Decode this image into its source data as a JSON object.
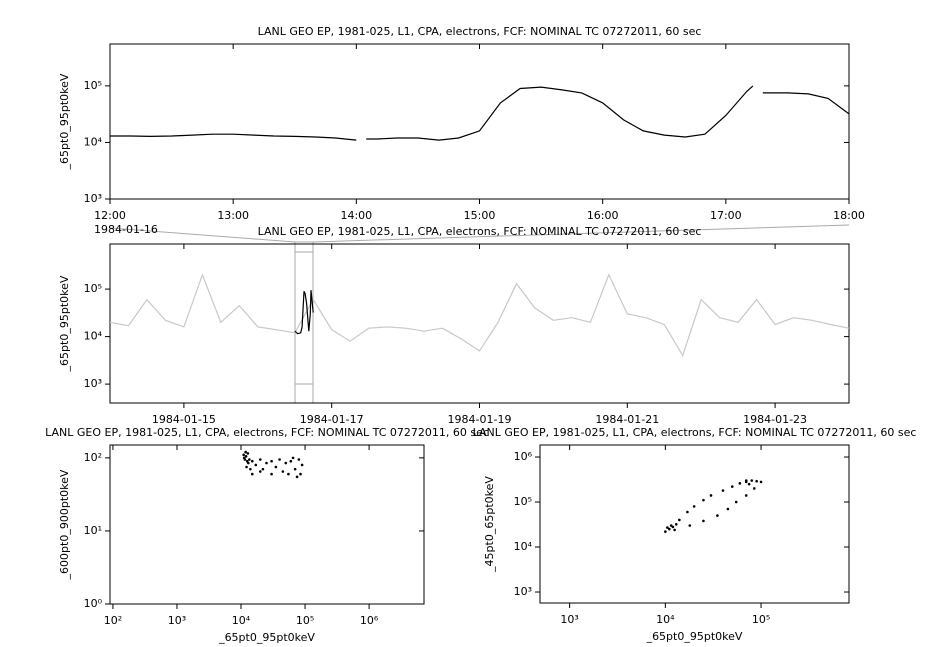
{
  "chart_data": [
    {
      "type": "line",
      "title": "LANL GEO EP, 1981-025, L1, CPA, electrons, FCF: NOMINAL TC 07272011, 60 sec",
      "y_label": "_65pt0_95pt0keV",
      "x_context": "1984-01-16",
      "ylog": true,
      "xlog": false,
      "xlim": [
        12,
        18
      ],
      "xticks": [
        {
          "value": 12,
          "label": "12:00"
        },
        {
          "value": 13,
          "label": "13:00"
        },
        {
          "value": 14,
          "label": "14:00"
        },
        {
          "value": 15,
          "label": "15:00"
        },
        {
          "value": 16,
          "label": "16:00"
        },
        {
          "value": 17,
          "label": "17:00"
        },
        {
          "value": 18,
          "label": "18:00"
        }
      ],
      "ylim": [
        1000,
        550000
      ],
      "yticks": [
        {
          "value": 1000,
          "label": "10³"
        },
        {
          "value": 10000,
          "label": "10⁴"
        },
        {
          "value": 100000,
          "label": "10⁵"
        }
      ],
      "series": [
        {
          "color": "#000000",
          "x": [
            12,
            12.17,
            12.33,
            12.5,
            12.67,
            12.83,
            13,
            13.17,
            13.33,
            13.5,
            13.67,
            13.83,
            14,
            14.03,
            14.08,
            14.17,
            14.33,
            14.5,
            14.67,
            14.83,
            15,
            15.17,
            15.33,
            15.5,
            15.67,
            15.83,
            16,
            16.17,
            16.33,
            16.5,
            16.67,
            16.83,
            17,
            17.17,
            17.22,
            17.25,
            17.3,
            17.5,
            17.67,
            17.83,
            18
          ],
          "values": [
            13000,
            13000,
            12800,
            13000,
            13500,
            14000,
            14000,
            13500,
            13000,
            12800,
            12500,
            12000,
            11000,
            null,
            11500,
            11500,
            12000,
            12000,
            11000,
            12000,
            16000,
            50000,
            90000,
            95000,
            85000,
            75000,
            50000,
            25000,
            16000,
            13500,
            12500,
            14000,
            30000,
            80000,
            100000,
            null,
            75000,
            75000,
            72000,
            60000,
            32000
          ]
        }
      ]
    },
    {
      "type": "line",
      "title": "LANL GEO EP, 1981-025, L1, CPA, electrons, FCF: NOMINAL TC 07272011, 60 sec",
      "y_label": "_65pt0_95pt0keV",
      "ylog": true,
      "xlog": false,
      "xlim": [
        14,
        24
      ],
      "xticks": [
        {
          "value": 15,
          "label": "1984-01-15"
        },
        {
          "value": 17,
          "label": "1984-01-17"
        },
        {
          "value": 19,
          "label": "1984-01-19"
        },
        {
          "value": 21,
          "label": "1984-01-21"
        },
        {
          "value": 23,
          "label": "1984-01-23"
        }
      ],
      "ylim": [
        400,
        890000
      ],
      "yticks": [
        {
          "value": 1000,
          "label": "10³"
        },
        {
          "value": 10000,
          "label": "10⁴"
        },
        {
          "value": 100000,
          "label": "10⁵"
        }
      ],
      "series": [
        {
          "color": "#c8c8c8",
          "x": [
            14,
            14.25,
            14.5,
            14.75,
            15,
            15.25,
            15.5,
            15.75,
            16,
            16.25,
            16.5,
            16.75,
            17,
            17.25,
            17.5,
            17.75,
            18,
            18.25,
            18.5,
            18.75,
            19,
            19.25,
            19.5,
            19.75,
            20,
            20.25,
            20.5,
            20.75,
            21,
            21.25,
            21.5,
            21.75,
            22,
            22.25,
            22.5,
            22.75,
            23,
            23.25,
            23.5,
            23.75,
            24
          ],
          "values": [
            20000,
            17000,
            60000,
            22000,
            16000,
            200000,
            20000,
            45000,
            16000,
            14000,
            12000,
            60000,
            14000,
            8000,
            15000,
            16000,
            15000,
            13000,
            15000,
            9000,
            5000,
            20000,
            130000,
            40000,
            22000,
            25000,
            20000,
            200000,
            30000,
            25000,
            18000,
            4000,
            60000,
            25000,
            20000,
            60000,
            18000,
            25000,
            22000,
            18000,
            15000
          ]
        },
        {
          "color": "#000000",
          "x": [
            16.5,
            16.54,
            16.58,
            16.6,
            16.625,
            16.64,
            16.66,
            16.69,
            16.71,
            16.72,
            16.75
          ],
          "values": [
            13000,
            11500,
            12000,
            16000,
            90000,
            80000,
            50000,
            13000,
            30000,
            95000,
            32000
          ]
        }
      ]
    },
    {
      "type": "scatter",
      "title": "LANL GEO EP, 1981-025, L1, CPA, electrons, FCF: NOMINAL TC 07272011, 60 sec",
      "y_label": "_600pt0_900pt0keV",
      "x_label": "_65pt0_95pt0keV",
      "ylog": true,
      "xlog": true,
      "xlim": [
        90,
        7200000
      ],
      "xticks": [
        {
          "value": 100,
          "label": "10²"
        },
        {
          "value": 1000,
          "label": "10³"
        },
        {
          "value": 10000,
          "label": "10⁴"
        },
        {
          "value": 100000,
          "label": "10⁵"
        },
        {
          "value": 1000000,
          "label": "10⁶"
        }
      ],
      "ylim": [
        1,
        150
      ],
      "yticks": [
        {
          "value": 1,
          "label": "10⁰"
        },
        {
          "value": 10,
          "label": "10¹"
        },
        {
          "value": 100,
          "label": "10²"
        }
      ],
      "series": [
        {
          "color": "#000000",
          "x": [
            11000,
            11500,
            12000,
            12500,
            11800,
            13000,
            12200,
            11200,
            12800,
            13500,
            15000,
            17000,
            20000,
            22000,
            25000,
            30000,
            35000,
            40000,
            45000,
            50000,
            60000,
            70000,
            80000,
            85000,
            75000,
            55000,
            30000,
            20000,
            15000,
            14000,
            90000,
            65000
          ],
          "values": [
            110,
            95,
            105,
            90,
            120,
            85,
            75,
            100,
            115,
            95,
            90,
            80,
            95,
            70,
            85,
            90,
            75,
            95,
            65,
            85,
            90,
            70,
            95,
            60,
            55,
            60,
            60,
            65,
            60,
            70,
            80,
            100
          ]
        }
      ]
    },
    {
      "type": "scatter",
      "title": "LANL GEO EP, 1981-025, L1, CPA, electrons, FCF: NOMINAL TC 07272011, 60 sec",
      "y_label": "_45pt0_65pt0keV",
      "x_label": "_65pt0_95pt0keV",
      "ylog": true,
      "xlog": true,
      "xlim": [
        490,
        830000
      ],
      "xticks": [
        {
          "value": 1000,
          "label": "10³"
        },
        {
          "value": 10000,
          "label": "10⁴"
        },
        {
          "value": 100000,
          "label": "10⁵"
        }
      ],
      "ylim": [
        570,
        1850000
      ],
      "yticks": [
        {
          "value": 1000,
          "label": "10³"
        },
        {
          "value": 10000,
          "label": "10⁴"
        },
        {
          "value": 100000,
          "label": "10⁵"
        },
        {
          "value": 1000000,
          "label": "10⁶"
        }
      ],
      "series": [
        {
          "color": "#000000",
          "x": [
            10000,
            11000,
            12000,
            11500,
            12500,
            13000,
            10500,
            14000,
            17000,
            20000,
            25000,
            30000,
            40000,
            50000,
            60000,
            70000,
            80000,
            90000,
            100000,
            85000,
            70000,
            55000,
            45000,
            35000,
            25000,
            18000,
            75000,
            70000
          ],
          "values": [
            22000,
            25000,
            28000,
            30000,
            24000,
            32000,
            27000,
            40000,
            60000,
            80000,
            110000,
            140000,
            180000,
            220000,
            260000,
            280000,
            300000,
            290000,
            280000,
            200000,
            140000,
            100000,
            70000,
            50000,
            38000,
            30000,
            250000,
            300000
          ]
        }
      ]
    }
  ]
}
